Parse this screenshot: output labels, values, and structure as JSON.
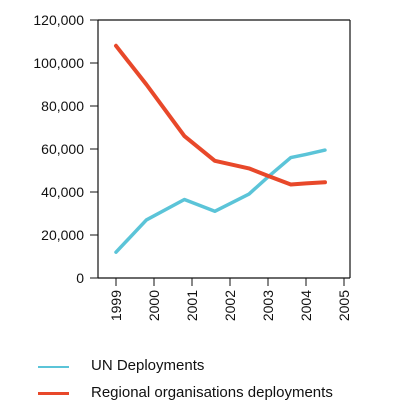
{
  "chart_data": {
    "type": "line",
    "title": "",
    "xlabel": "",
    "ylabel": "",
    "categories": [
      "1999",
      "2000",
      "2001",
      "2002",
      "2003",
      "2004",
      "2005"
    ],
    "ylim": [
      0,
      120000
    ],
    "yticks": [
      "0",
      "20,000",
      "40,000",
      "60,000",
      "80,000",
      "100,000",
      "120,000"
    ],
    "ytick_values": [
      0,
      20000,
      40000,
      60000,
      80000,
      100000,
      120000
    ],
    "grid": false,
    "legend_position": "bottom",
    "series": [
      {
        "name": "UN Deployments",
        "color": "#5bc4d8",
        "x": [
          1999.0,
          1999.8,
          2000.8,
          2001.6,
          2002.5,
          2003.0,
          2003.6,
          2004.0,
          2004.5
        ],
        "values": [
          12000,
          27000,
          36500,
          31000,
          39000,
          47000,
          56000,
          57500,
          59500
        ]
      },
      {
        "name": "Regional organisations deployments",
        "color": "#e8482a",
        "x": [
          1999.0,
          1999.8,
          2000.8,
          2001.6,
          2002.5,
          2003.0,
          2003.6,
          2004.0,
          2004.5
        ],
        "values": [
          108000,
          90000,
          66000,
          54500,
          51000,
          47500,
          43500,
          44000,
          44500
        ]
      }
    ]
  }
}
